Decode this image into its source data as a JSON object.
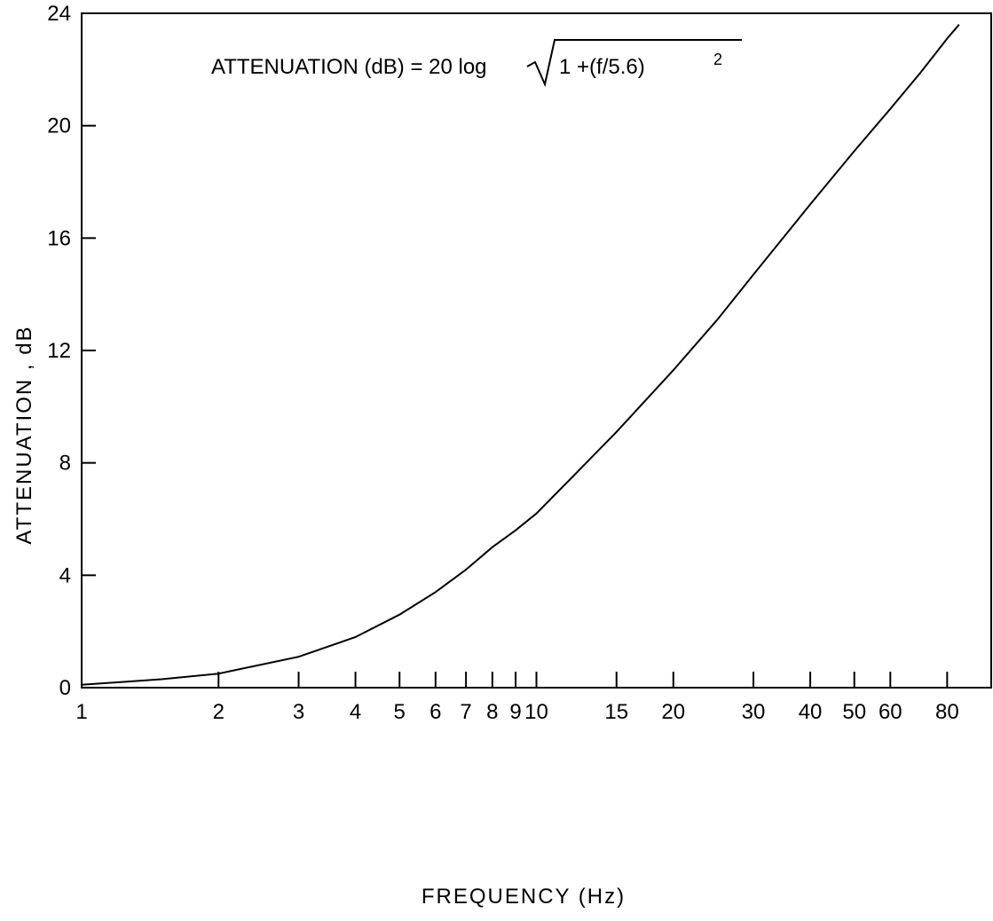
{
  "chart_data": {
    "type": "line",
    "title": "",
    "annotation": {
      "prefix": "ATTENUATION (dB) = 20 log",
      "radicand_base": "1 +(f/5.6)",
      "exponent": "2"
    },
    "xlabel": "FREQUENCY (Hz)",
    "ylabel": "ATTENUATION , dB",
    "x_scale": "log",
    "xlim": [
      1,
      100
    ],
    "ylim": [
      0,
      24
    ],
    "x_ticks": [
      1,
      2,
      3,
      4,
      5,
      6,
      7,
      8,
      9,
      10,
      15,
      20,
      30,
      40,
      50,
      60,
      80
    ],
    "x_tick_labels": [
      "1",
      "2",
      "3",
      "4",
      "5",
      "6",
      "7",
      "8",
      "9",
      "10",
      "15",
      "20",
      "30",
      "40",
      "50",
      "60",
      "80"
    ],
    "y_ticks": [
      0,
      4,
      8,
      12,
      16,
      20,
      24
    ],
    "y_tick_labels": [
      "0",
      "4",
      "8",
      "12",
      "16",
      "20",
      "24"
    ],
    "grid": false,
    "line_color": "#000000",
    "series": [
      {
        "x": [
          1,
          1.5,
          2,
          3,
          4,
          5,
          6,
          7,
          8,
          9,
          10,
          12,
          15,
          20,
          25,
          30,
          40,
          50,
          60,
          70,
          80,
          85
        ],
        "y": [
          0.1,
          0.3,
          0.5,
          1.1,
          1.8,
          2.6,
          3.4,
          4.2,
          5.0,
          5.6,
          6.2,
          7.5,
          9.1,
          11.3,
          13.1,
          14.7,
          17.2,
          19.1,
          20.6,
          21.9,
          23.1,
          23.6
        ]
      }
    ]
  }
}
